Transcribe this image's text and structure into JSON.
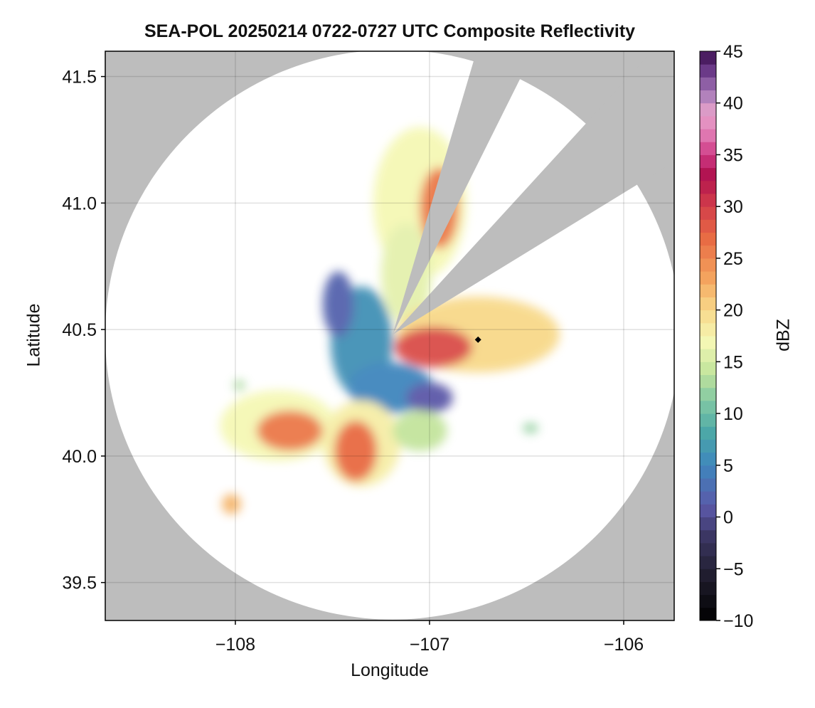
{
  "chart_data": {
    "type": "heatmap",
    "title": "SEA-POL 20250214 0722-0727 UTC Composite Reflectivity",
    "xlabel": "Longitude",
    "ylabel": "Latitude",
    "xlim": [
      -108.67,
      -105.74
    ],
    "ylim": [
      39.35,
      41.6
    ],
    "xticks": [
      -108,
      -107,
      -106
    ],
    "xtick_labels": [
      "−108",
      "−107",
      "−106"
    ],
    "yticks": [
      39.5,
      40.0,
      40.5,
      41.0,
      41.5
    ],
    "ytick_labels": [
      "39.5",
      "40.0",
      "40.5",
      "41.0",
      "41.5"
    ],
    "grid": true,
    "background_color": "#bdbdbd",
    "radar": {
      "center_lon": -107.19,
      "center_lat": 40.48,
      "coverage_radius_km": 125,
      "blocked_sectors": [
        {
          "from_az_deg": 16.5,
          "to_az_deg": 26.5,
          "note": "beam blockage"
        },
        {
          "from_az_deg": 42.5,
          "to_az_deg": 58.5,
          "note": "beam blockage"
        }
      ]
    },
    "site_marker": {
      "lon": -106.75,
      "lat": 40.46,
      "symbol": "diamond",
      "color": "#000000"
    },
    "colorbar": {
      "label": "dBZ",
      "range": [
        -10,
        45
      ],
      "ticks": [
        -10,
        -5,
        0,
        5,
        10,
        15,
        20,
        25,
        30,
        35,
        40,
        45
      ],
      "tick_labels": [
        "−10",
        "−5",
        "0",
        "5",
        "10",
        "15",
        "20",
        "25",
        "30",
        "35",
        "40",
        "45"
      ],
      "colormap_stops": [
        {
          "dbz": -10,
          "color": "#000000"
        },
        {
          "dbz": -6,
          "color": "#1d1b2a"
        },
        {
          "dbz": -2,
          "color": "#3a3560"
        },
        {
          "dbz": 1,
          "color": "#5b58a8"
        },
        {
          "dbz": 5,
          "color": "#3f86bd"
        },
        {
          "dbz": 8,
          "color": "#4aa6a8"
        },
        {
          "dbz": 11,
          "color": "#7dc6a4"
        },
        {
          "dbz": 14,
          "color": "#c3e49c"
        },
        {
          "dbz": 17,
          "color": "#f5f8b5"
        },
        {
          "dbz": 20,
          "color": "#f8d98a"
        },
        {
          "dbz": 23,
          "color": "#f4a55f"
        },
        {
          "dbz": 27,
          "color": "#e86a43"
        },
        {
          "dbz": 30,
          "color": "#d33f4a"
        },
        {
          "dbz": 33,
          "color": "#b0114f"
        },
        {
          "dbz": 35,
          "color": "#cf3a85"
        },
        {
          "dbz": 37,
          "color": "#e07ab3"
        },
        {
          "dbz": 39,
          "color": "#e7a2cb"
        },
        {
          "dbz": 41,
          "color": "#a67ab8"
        },
        {
          "dbz": 43,
          "color": "#6e3d8c"
        },
        {
          "dbz": 45,
          "color": "#3b0f4f"
        }
      ]
    },
    "echo_regions": [
      {
        "name": "north-arm",
        "lon": -107.05,
        "lat": 41.0,
        "rx_deg": 0.24,
        "ry_deg": 0.3,
        "dbz": 17
      },
      {
        "name": "north-core",
        "lon": -106.95,
        "lat": 40.98,
        "rx_deg": 0.1,
        "ry_deg": 0.16,
        "dbz": 26
      },
      {
        "name": "north-inner",
        "lon": -107.12,
        "lat": 40.72,
        "rx_deg": 0.13,
        "ry_deg": 0.2,
        "dbz": 16
      },
      {
        "name": "east-sector",
        "lon": -106.75,
        "lat": 40.48,
        "rx_deg": 0.42,
        "ry_deg": 0.15,
        "dbz": 20
      },
      {
        "name": "east-core",
        "lon": -106.98,
        "lat": 40.43,
        "rx_deg": 0.2,
        "ry_deg": 0.08,
        "dbz": 29
      },
      {
        "name": "west-weak",
        "lon": -107.35,
        "lat": 40.45,
        "rx_deg": 0.16,
        "ry_deg": 0.22,
        "dbz": 6
      },
      {
        "name": "west-fringe",
        "lon": -107.47,
        "lat": 40.6,
        "rx_deg": 0.08,
        "ry_deg": 0.13,
        "dbz": 2
      },
      {
        "name": "south-center-weak",
        "lon": -107.2,
        "lat": 40.27,
        "rx_deg": 0.22,
        "ry_deg": 0.1,
        "dbz": 5
      },
      {
        "name": "southeast-weak",
        "lon": -107.0,
        "lat": 40.23,
        "rx_deg": 0.12,
        "ry_deg": 0.06,
        "dbz": 1
      },
      {
        "name": "southwest-arm",
        "lon": -107.78,
        "lat": 40.12,
        "rx_deg": 0.3,
        "ry_deg": 0.14,
        "dbz": 17
      },
      {
        "name": "southwest-core",
        "lon": -107.72,
        "lat": 40.1,
        "rx_deg": 0.17,
        "ry_deg": 0.08,
        "dbz": 26
      },
      {
        "name": "south-arm",
        "lon": -107.35,
        "lat": 40.05,
        "rx_deg": 0.2,
        "ry_deg": 0.17,
        "dbz": 18
      },
      {
        "name": "south-core",
        "lon": -107.38,
        "lat": 40.02,
        "rx_deg": 0.11,
        "ry_deg": 0.12,
        "dbz": 27
      },
      {
        "name": "southeast-band",
        "lon": -107.05,
        "lat": 40.1,
        "rx_deg": 0.14,
        "ry_deg": 0.08,
        "dbz": 14
      },
      {
        "name": "southwest-cell",
        "lon": -108.02,
        "lat": 39.81,
        "rx_deg": 0.05,
        "ry_deg": 0.04,
        "dbz": 22
      },
      {
        "name": "far-east-cell",
        "lon": -106.48,
        "lat": 40.11,
        "rx_deg": 0.04,
        "ry_deg": 0.02,
        "dbz": 12
      },
      {
        "name": "west-cell",
        "lon": -107.98,
        "lat": 40.28,
        "rx_deg": 0.03,
        "ry_deg": 0.02,
        "dbz": 13
      }
    ]
  }
}
